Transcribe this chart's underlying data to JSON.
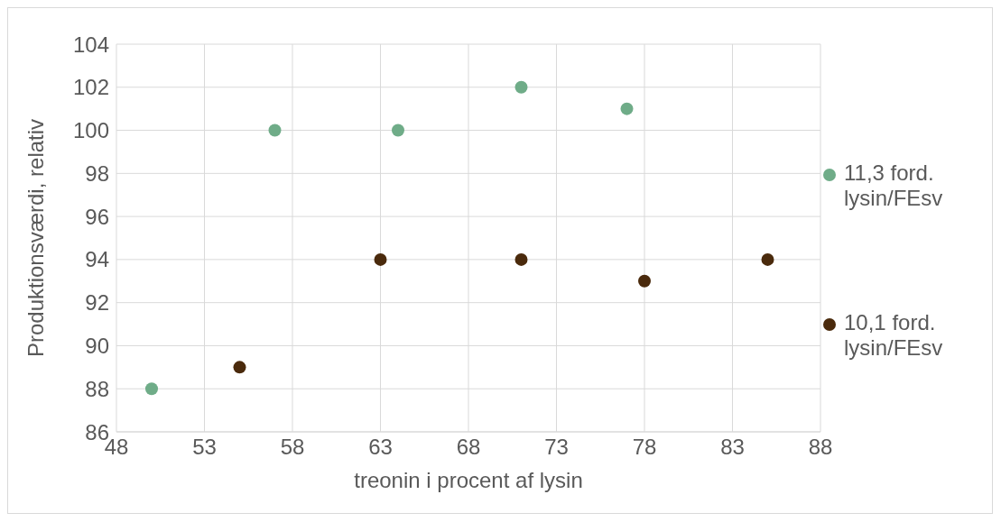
{
  "chart_data": {
    "type": "scatter",
    "xlabel": "treonin i procent af lysin",
    "ylabel": "Produktionsværdi, relativ",
    "xlim": [
      48,
      88
    ],
    "xticks": [
      48,
      53,
      58,
      63,
      68,
      73,
      78,
      83,
      88
    ],
    "ylim": [
      86,
      104
    ],
    "yticks": [
      86,
      88,
      90,
      92,
      94,
      96,
      98,
      100,
      102,
      104
    ],
    "grid": true,
    "legend": "right",
    "marker": "circle",
    "series": [
      {
        "name": "11,3 ford. lysin/FEsv",
        "color": "#6fac88",
        "x": [
          50,
          57,
          64,
          71,
          77
        ],
        "values": [
          88,
          100,
          100,
          102,
          101
        ]
      },
      {
        "name": "10,1 ford. lysin/FEsv",
        "color": "#4a2a0c",
        "x": [
          55,
          63,
          71,
          78,
          85
        ],
        "values": [
          89,
          94,
          94,
          93,
          94
        ]
      }
    ]
  }
}
